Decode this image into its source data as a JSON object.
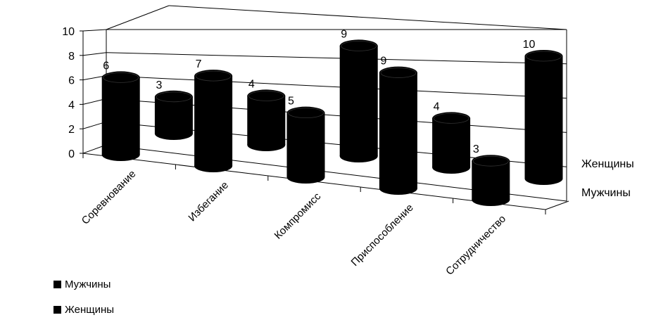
{
  "chart_data": {
    "type": "bar",
    "style": "3d-cylinder",
    "categories": [
      "Соревнование",
      "Избегание",
      "Компромисс",
      "Приспособление",
      "Сотрудничество"
    ],
    "series": [
      {
        "name": "Мужчины",
        "values": [
          6,
          7,
          5,
          9,
          3
        ]
      },
      {
        "name": "Женщины",
        "values": [
          3,
          4,
          9,
          4,
          10
        ]
      }
    ],
    "ylim": [
      0,
      10
    ],
    "yticks": [
      "0",
      "2",
      "4",
      "6",
      "8",
      "10"
    ],
    "depth_labels": [
      "Женщины",
      "Мужчины"
    ],
    "grid": true,
    "legend_position": "bottom-left",
    "colors": {
      "bars": "#000000",
      "axes": "#000000",
      "background": "#ffffff"
    }
  }
}
